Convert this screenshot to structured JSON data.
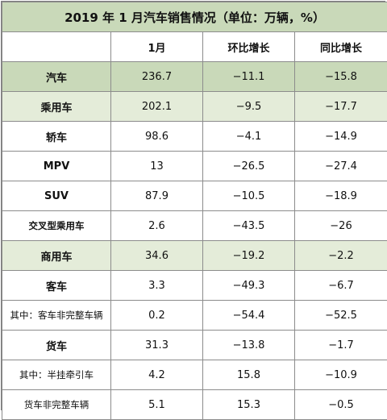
{
  "title": "2019 年 1 月汽车销售情况（单位：万辆，%）",
  "columns": [
    "",
    "1月",
    "环比增长",
    "同比增长"
  ],
  "rows": [
    {
      "label": "汽车",
      "month": "236.7",
      "mom": "−11.1",
      "yoy": "−15.8"
    },
    {
      "label": "乘用车",
      "month": "202.1",
      "mom": "−9.5",
      "yoy": "−17.7"
    },
    {
      "label": "轿车",
      "month": "98.6",
      "mom": "−4.1",
      "yoy": "−14.9"
    },
    {
      "label": "MPV",
      "month": "13",
      "mom": "−26.5",
      "yoy": "−27.4"
    },
    {
      "label": "SUV",
      "month": "87.9",
      "mom": "−10.5",
      "yoy": "−18.9"
    },
    {
      "label": "交叉型乘用车",
      "month": "2.6",
      "mom": "−43.5",
      "yoy": "−26"
    },
    {
      "label": "商用车",
      "month": "34.6",
      "mom": "−19.2",
      "yoy": "−2.2"
    },
    {
      "label": "客车",
      "month": "3.3",
      "mom": "−49.3",
      "yoy": "−6.7"
    },
    {
      "label": "其中：客车非完整车辆",
      "month": "0.2",
      "mom": "−54.4",
      "yoy": "−52.5"
    },
    {
      "label": "货车",
      "month": "31.3",
      "mom": "−13.8",
      "yoy": "−1.7"
    },
    {
      "label": "其中：半挂牵引车",
      "month": "4.2",
      "mom": "15.8",
      "yoy": "−10.9"
    },
    {
      "label": "货车非完整车辆",
      "month": "5.1",
      "mom": "15.3",
      "yoy": "−0.5"
    }
  ],
  "colors": {
    "header_fill": "#c9d9b9",
    "category_fill": "#e4ecd9",
    "border": "#8c8c8c"
  }
}
